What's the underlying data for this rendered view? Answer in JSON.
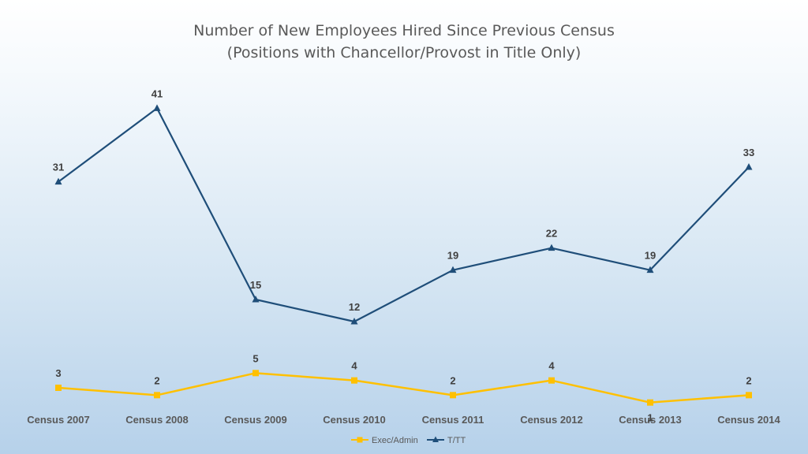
{
  "chart_data": {
    "type": "line",
    "title": "Number of New Employees Hired Since Previous Census",
    "subtitle": "(Positions with Chancellor/Provost in Title Only)",
    "categories": [
      "Census 2007",
      "Census 2008",
      "Census 2009",
      "Census 2010",
      "Census 2011",
      "Census 2012",
      "Census 2013",
      "Census 2014"
    ],
    "series": [
      {
        "name": "Exec/Admin",
        "values": [
          3,
          2,
          5,
          4,
          2,
          4,
          1,
          2
        ],
        "color": "#FFC000",
        "marker": "square"
      },
      {
        "name": "T/TT",
        "values": [
          31,
          41,
          15,
          12,
          19,
          22,
          19,
          33
        ],
        "color": "#1F4E79",
        "marker": "triangle"
      }
    ],
    "ylim": [
      0,
      45
    ],
    "grid": false,
    "legend": "bottom"
  }
}
